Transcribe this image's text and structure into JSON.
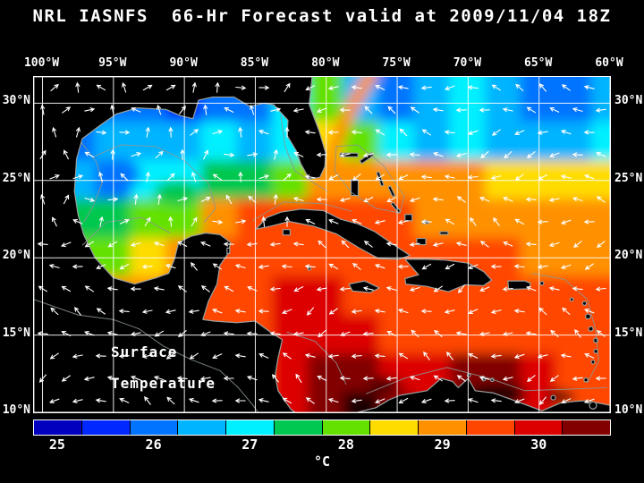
{
  "title": "NRL IASNFS  66-Hr Forecast valid at 2009/11/04 18Z",
  "map": {
    "overlay_line1": "Surface",
    "overlay_line2": "Temperature",
    "background_color": "#000000",
    "grid_color": "#ffffff",
    "coastline_color": "#9aa0a0",
    "vector_color": "#ffffff"
  },
  "chart_data": {
    "type": "heatmap",
    "variable": "sea surface temperature",
    "units": "°C",
    "lon_ticks": [
      "100°W",
      "95°W",
      "90°W",
      "85°W",
      "80°W",
      "75°W",
      "70°W",
      "65°W",
      "60°W"
    ],
    "lon_tick_values": [
      -100,
      -95,
      -90,
      -85,
      -80,
      -75,
      -70,
      -65,
      -60
    ],
    "lat_ticks": [
      "30°N",
      "25°N",
      "20°N",
      "15°N",
      "10°N"
    ],
    "lat_tick_values": [
      30,
      25,
      20,
      15,
      10
    ],
    "lon_range": [
      -100.6,
      -60.0
    ],
    "lat_range": [
      10.0,
      31.7
    ],
    "grid_lons": [
      -100,
      -97.5,
      -95,
      -92.5,
      -90,
      -87.5,
      -85,
      -82.5,
      -80,
      -77.5,
      -75,
      -72.5,
      -70,
      -67.5,
      -65,
      -62.5,
      -60
    ],
    "grid_lats": [
      30,
      27.5,
      25,
      22.5,
      20,
      17.5,
      15,
      12.5,
      10
    ],
    "sst_grid": [
      [
        26,
        26,
        26,
        26,
        25.5,
        26,
        26,
        27,
        28,
        26.5,
        26,
        26.5,
        27,
        26.5,
        26,
        26,
        26.5
      ],
      [
        26.5,
        26,
        26.5,
        26.5,
        26.5,
        27,
        26.5,
        27,
        28.5,
        28,
        27,
        26.5,
        27,
        26.5,
        26.5,
        26.5,
        27
      ],
      [
        27,
        26.5,
        26,
        27,
        27,
        27.5,
        27.5,
        28,
        29,
        29,
        28.8,
        28.8,
        28.8,
        28.6,
        28.6,
        28.6,
        28.6
      ],
      [
        27.5,
        27.5,
        27.5,
        27.8,
        28.2,
        28.8,
        29.3,
        29.3,
        29.3,
        29.3,
        29.3,
        29.1,
        28.8,
        28.8,
        28.8,
        28.8,
        28.8
      ],
      [
        28,
        28,
        28.2,
        28.6,
        29.1,
        29.6,
        29.6,
        29.6,
        29.6,
        29.6,
        29.6,
        29.6,
        29.3,
        29.3,
        29.1,
        29.1,
        29.1
      ],
      [
        28.5,
        28.5,
        28.8,
        29.1,
        29.6,
        29.6,
        29.6,
        30.1,
        30.1,
        29.6,
        29.6,
        29.6,
        29.6,
        29.6,
        29.6,
        29.6,
        29.6
      ],
      [
        29,
        29,
        29.1,
        29.6,
        29.6,
        29.6,
        29.6,
        30.1,
        30.1,
        30.1,
        29.6,
        29.6,
        29.6,
        29.6,
        29.6,
        29.6,
        29.6
      ],
      [
        29.1,
        29.1,
        29.1,
        29.6,
        29.6,
        29.6,
        29.6,
        30.1,
        30.6,
        30.6,
        30.1,
        30.1,
        30.6,
        30.6,
        30.1,
        29.6,
        29.6
      ],
      [
        29.6,
        29.6,
        29.6,
        29.6,
        29.6,
        29.6,
        29.6,
        30.1,
        30.6,
        31,
        30.6,
        30.1,
        31,
        30.6,
        30.1,
        29.6,
        29.6
      ]
    ],
    "colorbar": {
      "min": 24.75,
      "max": 30.75,
      "segment_colors": [
        "#0000be",
        "#0028ff",
        "#0073ff",
        "#00b4ff",
        "#00f0ff",
        "#00c850",
        "#64e100",
        "#ffdc00",
        "#ff9100",
        "#ff4600",
        "#dc0000",
        "#820000"
      ],
      "over_color": "#1c0404",
      "tick_values": [
        25,
        26,
        27,
        28,
        29,
        30
      ],
      "tick_labels": [
        "25",
        "26",
        "27",
        "28",
        "29",
        "30"
      ],
      "unit_label": "°C"
    }
  }
}
